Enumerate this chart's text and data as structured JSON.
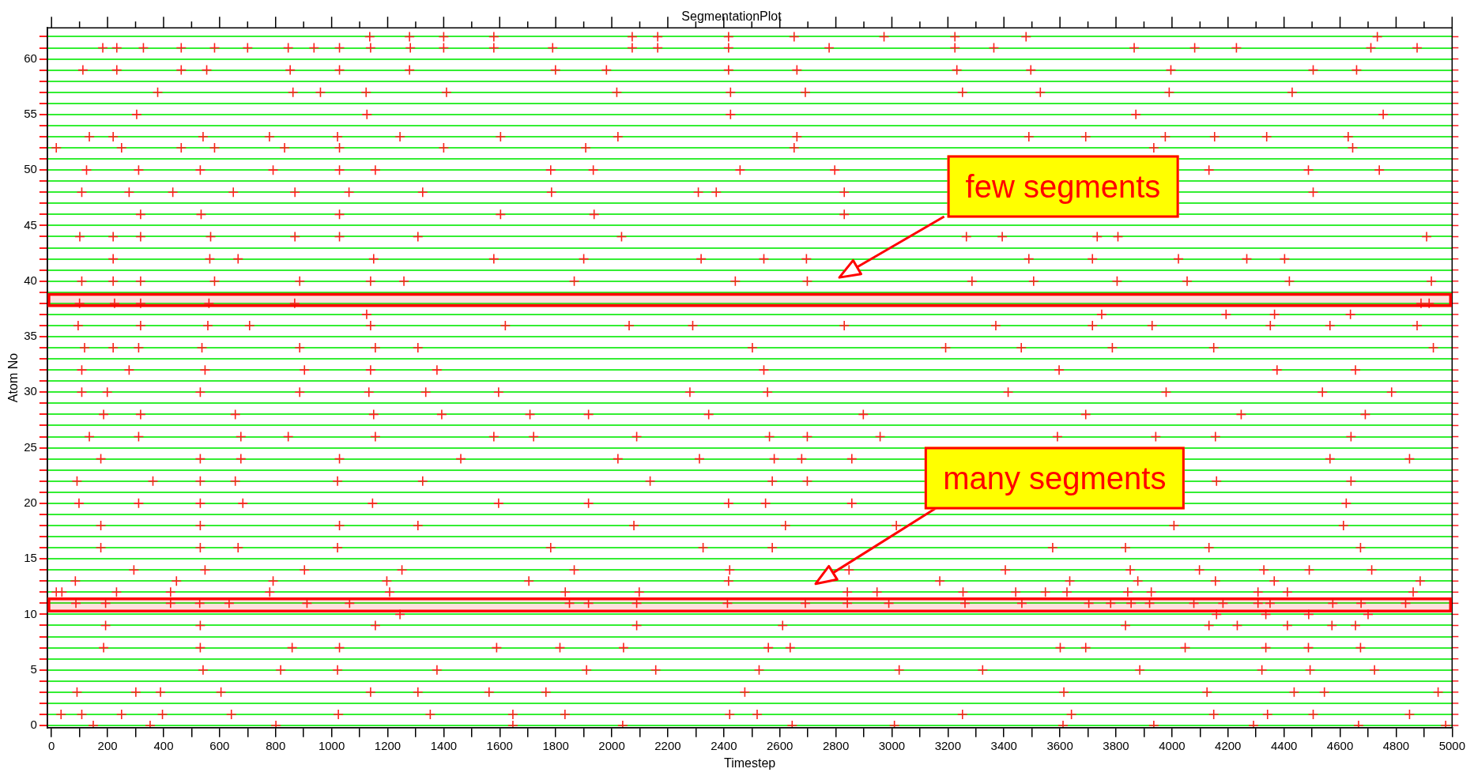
{
  "chart_data": {
    "type": "scatter",
    "title": "SegmentationPlot",
    "xlabel": "Timestep",
    "ylabel": "Atom No",
    "xlim": [
      -15,
      5000
    ],
    "ylim": [
      -0.2,
      62.8
    ],
    "xticks": [
      0,
      {
        "value": 100,
        "label": null
      },
      200,
      {
        "value": 300,
        "label": null
      },
      400,
      {
        "value": 500,
        "label": null
      },
      600,
      {
        "value": 700,
        "label": null
      },
      800,
      {
        "value": 900,
        "label": null
      },
      1000,
      {
        "value": 1100,
        "label": null
      },
      1200,
      {
        "value": 1300,
        "label": null
      },
      1400,
      {
        "value": 1500,
        "label": null
      },
      1600,
      {
        "value": 1700,
        "label": null
      },
      1800,
      {
        "value": 1900,
        "label": null
      },
      2000,
      {
        "value": 2100,
        "label": null
      },
      2200,
      {
        "value": 2300,
        "label": null
      },
      2400,
      {
        "value": 2500,
        "label": null
      },
      2600,
      {
        "value": 2700,
        "label": null
      },
      2800,
      {
        "value": 2900,
        "label": null
      },
      3000,
      {
        "value": 3100,
        "label": null
      },
      3200,
      {
        "value": 3300,
        "label": null
      },
      3400,
      {
        "value": 3500,
        "label": null
      },
      3600,
      {
        "value": 3700,
        "label": null
      },
      3800,
      {
        "value": 3900,
        "label": null
      },
      4000,
      {
        "value": 4100,
        "label": null
      },
      4200,
      {
        "value": 4300,
        "label": null
      },
      4400,
      {
        "value": 4500,
        "label": null
      },
      4600,
      {
        "value": 4700,
        "label": null
      },
      4800,
      {
        "value": 4900,
        "label": null
      },
      5000
    ],
    "yticks": [
      0,
      {
        "value": 1,
        "label": null
      },
      {
        "value": 2,
        "label": null
      },
      {
        "value": 3,
        "label": null
      },
      {
        "value": 4,
        "label": null
      },
      5,
      {
        "value": 6,
        "label": null
      },
      {
        "value": 7,
        "label": null
      },
      {
        "value": 8,
        "label": null
      },
      {
        "value": 9,
        "label": null
      },
      10,
      {
        "value": 11,
        "label": null
      },
      {
        "value": 12,
        "label": null
      },
      {
        "value": 13,
        "label": null
      },
      {
        "value": 14,
        "label": null
      },
      15,
      {
        "value": 16,
        "label": null
      },
      {
        "value": 17,
        "label": null
      },
      {
        "value": 18,
        "label": null
      },
      {
        "value": 19,
        "label": null
      },
      20,
      {
        "value": 21,
        "label": null
      },
      {
        "value": 22,
        "label": null
      },
      {
        "value": 23,
        "label": null
      },
      {
        "value": 24,
        "label": null
      },
      25,
      {
        "value": 26,
        "label": null
      },
      {
        "value": 27,
        "label": null
      },
      {
        "value": 28,
        "label": null
      },
      {
        "value": 29,
        "label": null
      },
      30,
      {
        "value": 31,
        "label": null
      },
      {
        "value": 32,
        "label": null
      },
      {
        "value": 33,
        "label": null
      },
      {
        "value": 34,
        "label": null
      },
      35,
      {
        "value": 36,
        "label": null
      },
      {
        "value": 37,
        "label": null
      },
      {
        "value": 38,
        "label": null
      },
      {
        "value": 39,
        "label": null
      },
      40,
      {
        "value": 41,
        "label": null
      },
      {
        "value": 42,
        "label": null
      },
      {
        "value": 43,
        "label": null
      },
      {
        "value": 44,
        "label": null
      },
      45,
      {
        "value": 46,
        "label": null
      },
      {
        "value": 47,
        "label": null
      },
      {
        "value": 48,
        "label": null
      },
      {
        "value": 49,
        "label": null
      },
      50,
      {
        "value": 51,
        "label": null
      },
      {
        "value": 52,
        "label": null
      },
      {
        "value": 53,
        "label": null
      },
      {
        "value": 54,
        "label": null
      },
      55,
      {
        "value": 56,
        "label": null
      },
      {
        "value": 57,
        "label": null
      },
      {
        "value": 58,
        "label": null
      },
      {
        "value": 59,
        "label": null
      },
      60,
      {
        "value": 61,
        "label": null
      },
      {
        "value": 62,
        "label": null
      }
    ],
    "grid": "y",
    "legend": false,
    "marker": "cross",
    "series": [
      {
        "color": "#ff2020",
        "x": [
          1136,
          1278,
          1400,
          1579,
          2073,
          2164,
          2417,
          2651,
          2972,
          3225,
          3479,
          4733,
          183,
          233,
          328,
          463,
          582,
          700,
          845,
          937,
          1028,
          1139,
          1281,
          1400,
          1579,
          1789,
          2073,
          2164,
          2417,
          2776,
          3225,
          3364,
          3865,
          4081,
          4230,
          4710,
          4875,
          112,
          233,
          463,
          554,
          852,
          1028,
          1278,
          1799,
          1981,
          2417,
          2661,
          3232,
          3496,
          3996,
          4504,
          4659,
          379,
          862,
          960,
          1123,
          1410,
          2018,
          2424,
          2691,
          3252,
          3530,
          3990,
          4429,
          304,
          1126,
          2424,
          3871,
          4754,
          135,
          220,
          541,
          778,
          1021,
          1244,
          1603,
          2022,
          2661,
          3489,
          3692,
          3976,
          4152,
          4338,
          4629,
          17,
          250,
          463,
          582,
          832,
          1028,
          1400,
          1907,
          2651,
          3935,
          4645,
          125,
          311,
          531,
          791,
          1028,
          1156,
          1782,
          1934,
          2458,
          2796,
          4132,
          4487,
          4740,
          108,
          277,
          433,
          649,
          869,
          1062,
          1325,
          1785,
          2309,
          2373,
          2830,
          4504,
          318,
          534,
          1028,
          1603,
          1937,
          2830,
          101,
          220,
          318,
          568,
          869,
          1028,
          1308,
          2035,
          3266,
          3394,
          3733,
          3807,
          4909,
          220,
          565,
          666,
          1150,
          1579,
          1900,
          2319,
          2543,
          2695,
          3489,
          3716,
          4023,
          4267,
          4402,
          108,
          220,
          318,
          582,
          886,
          1139,
          1258,
          1866,
          2441,
          2698,
          3286,
          3506,
          3804,
          4054,
          4419,
          4926,
          100,
          225,
          318,
          562,
          868,
          4889,
          4918,
          1125,
          3749,
          4193,
          4366,
          4637,
          95,
          318,
          558,
          707,
          1139,
          1620,
          2062,
          2289,
          2830,
          3371,
          3716,
          3929,
          4351,
          4564,
          4875,
          118,
          220,
          311,
          537,
          886,
          1156,
          1308,
          2502,
          3192,
          3462,
          3787,
          4149,
          4933,
          108,
          277,
          548,
          903,
          1139,
          1376,
          2543,
          3597,
          4375,
          4655,
          108,
          199,
          531,
          886,
          1133,
          1336,
          1596,
          2279,
          2556,
          3415,
          3979,
          4537,
          4784,
          186,
          318,
          656,
          1150,
          1393,
          1708,
          1917,
          2346,
          2898,
          3692,
          4247,
          4690,
          135,
          311,
          676,
          845,
          1156,
          1579,
          1721,
          2089,
          2563,
          2698,
          2958,
          3591,
          3942,
          4155,
          4639,
          176,
          531,
          676,
          1028,
          1461,
          2022,
          2313,
          2580,
          2678,
          2857,
          4564,
          4848,
          91,
          362,
          531,
          656,
          1021,
          1325,
          2137,
          2573,
          2698,
          4159,
          4639,
          98,
          311,
          531,
          683,
          1146,
          1596,
          1917,
          2417,
          2549,
          2857,
          4622,
          176,
          531,
          1028,
          1308,
          2079,
          2620,
          3016,
          4007,
          4612,
          176,
          531,
          666,
          1021,
          1782,
          2326,
          2573,
          3574,
          3834,
          4132,
          4673,
          294,
          548,
          903,
          1251,
          1866,
          2421,
          2847,
          3405,
          3851,
          4098,
          4328,
          4490,
          4713,
          85,
          446,
          791,
          1197,
          1704,
          2417,
          3171,
          3635,
          3878,
          4155,
          4365,
          4886,
          17,
          37,
          232,
          425,
          779,
          1207,
          1834,
          2098,
          2841,
          2947,
          3254,
          3442,
          3548,
          3625,
          3842,
          3926,
          4307,
          4412,
          4861,
          87,
          193,
          425,
          529,
          634,
          912,
          1064,
          1849,
          1917,
          2089,
          2413,
          2691,
          2841,
          2989,
          3261,
          3464,
          3703,
          3781,
          3854,
          3920,
          4078,
          4182,
          4307,
          4350,
          4574,
          4675,
          4834,
          1244,
          4159,
          4335,
          4488,
          4700,
          193,
          531,
          1156,
          2089,
          2610,
          3834,
          4132,
          4233,
          4412,
          4571,
          4655,
          186,
          531,
          859,
          1028,
          1589,
          1815,
          2042,
          2559,
          2637,
          3601,
          3692,
          4047,
          4335,
          4487,
          4673,
          541,
          818,
          1021,
          1376,
          1910,
          2157,
          2526,
          3026,
          3324,
          3885,
          4321,
          4493,
          4723,
          91,
          301,
          389,
          605,
          1139,
          1308,
          1562,
          1765,
          2475,
          3614,
          4125,
          4436,
          4544,
          4950,
          34,
          108,
          250,
          396,
          642,
          1024,
          1352,
          1647,
          1833,
          2421,
          2519,
          3252,
          3641,
          4149,
          4341,
          4504,
          4848,
          149,
          352,
          801,
          1647,
          2039,
          2644,
          3009,
          3611,
          3935,
          4291,
          4666,
          4977
        ],
        "values": [
          62,
          62,
          62,
          62,
          62,
          62,
          62,
          62,
          62,
          62,
          62,
          62,
          61,
          61,
          61,
          61,
          61,
          61,
          61,
          61,
          61,
          61,
          61,
          61,
          61,
          61,
          61,
          61,
          61,
          61,
          61,
          61,
          61,
          61,
          61,
          61,
          61,
          59,
          59,
          59,
          59,
          59,
          59,
          59,
          59,
          59,
          59,
          59,
          59,
          59,
          59,
          59,
          59,
          57,
          57,
          57,
          57,
          57,
          57,
          57,
          57,
          57,
          57,
          57,
          57,
          55,
          55,
          55,
          55,
          55,
          53,
          53,
          53,
          53,
          53,
          53,
          53,
          53,
          53,
          53,
          53,
          53,
          53,
          53,
          53,
          52,
          52,
          52,
          52,
          52,
          52,
          52,
          52,
          52,
          52,
          52,
          50,
          50,
          50,
          50,
          50,
          50,
          50,
          50,
          50,
          50,
          50,
          50,
          50,
          48,
          48,
          48,
          48,
          48,
          48,
          48,
          48,
          48,
          48,
          48,
          48,
          46,
          46,
          46,
          46,
          46,
          46,
          44,
          44,
          44,
          44,
          44,
          44,
          44,
          44,
          44,
          44,
          44,
          44,
          44,
          42,
          42,
          42,
          42,
          42,
          42,
          42,
          42,
          42,
          42,
          42,
          42,
          42,
          42,
          40,
          40,
          40,
          40,
          40,
          40,
          40,
          40,
          40,
          40,
          40,
          40,
          40,
          40,
          40,
          40,
          38,
          38,
          38,
          38,
          38,
          38,
          38,
          37,
          37,
          37,
          37,
          37,
          36,
          36,
          36,
          36,
          36,
          36,
          36,
          36,
          36,
          36,
          36,
          36,
          36,
          36,
          36,
          34,
          34,
          34,
          34,
          34,
          34,
          34,
          34,
          34,
          34,
          34,
          34,
          34,
          32,
          32,
          32,
          32,
          32,
          32,
          32,
          32,
          32,
          32,
          30,
          30,
          30,
          30,
          30,
          30,
          30,
          30,
          30,
          30,
          30,
          30,
          30,
          28,
          28,
          28,
          28,
          28,
          28,
          28,
          28,
          28,
          28,
          28,
          28,
          26,
          26,
          26,
          26,
          26,
          26,
          26,
          26,
          26,
          26,
          26,
          26,
          26,
          26,
          26,
          24,
          24,
          24,
          24,
          24,
          24,
          24,
          24,
          24,
          24,
          24,
          24,
          22,
          22,
          22,
          22,
          22,
          22,
          22,
          22,
          22,
          22,
          22,
          20,
          20,
          20,
          20,
          20,
          20,
          20,
          20,
          20,
          20,
          20,
          18,
          18,
          18,
          18,
          18,
          18,
          18,
          18,
          18,
          16,
          16,
          16,
          16,
          16,
          16,
          16,
          16,
          16,
          16,
          16,
          14,
          14,
          14,
          14,
          14,
          14,
          14,
          14,
          14,
          14,
          14,
          14,
          14,
          13,
          13,
          13,
          13,
          13,
          13,
          13,
          13,
          13,
          13,
          13,
          13,
          12,
          12,
          12,
          12,
          12,
          12,
          12,
          12,
          12,
          12,
          12,
          12,
          12,
          12,
          12,
          12,
          12,
          12,
          12,
          11,
          11,
          11,
          11,
          11,
          11,
          11,
          11,
          11,
          11,
          11,
          11,
          11,
          11,
          11,
          11,
          11,
          11,
          11,
          11,
          11,
          11,
          11,
          11,
          11,
          11,
          11,
          10,
          10,
          10,
          10,
          10,
          9,
          9,
          9,
          9,
          9,
          9,
          9,
          9,
          9,
          9,
          9,
          7,
          7,
          7,
          7,
          7,
          7,
          7,
          7,
          7,
          7,
          7,
          7,
          7,
          7,
          7,
          5,
          5,
          5,
          5,
          5,
          5,
          5,
          5,
          5,
          5,
          5,
          5,
          5,
          3,
          3,
          3,
          3,
          3,
          3,
          3,
          3,
          3,
          3,
          3,
          3,
          3,
          3,
          1,
          1,
          1,
          1,
          1,
          1,
          1,
          1,
          1,
          1,
          1,
          1,
          1,
          1,
          1,
          1,
          1,
          0,
          0,
          0,
          0,
          0,
          0,
          0,
          0,
          0,
          0,
          0,
          0
        ]
      }
    ],
    "bands": [
      {
        "axis": "y",
        "from": 37.8,
        "to": 38.8,
        "color": "#ff0000"
      },
      {
        "axis": "y",
        "from": 10.3,
        "to": 11.4,
        "color": "#ff0000"
      }
    ],
    "annotations": [
      "few segments",
      "many segments"
    ]
  }
}
